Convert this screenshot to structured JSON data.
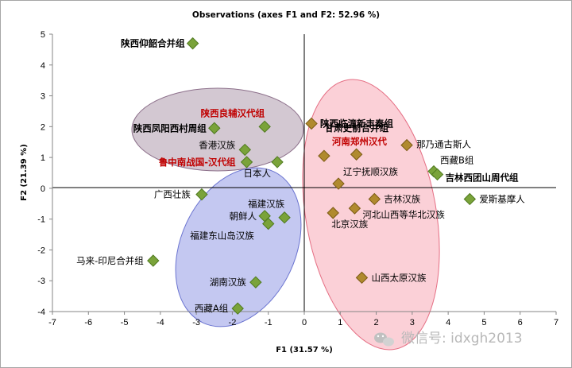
{
  "chart_data": {
    "type": "scatter",
    "title": "Observations (axes F1 and F2: 52.96 %)",
    "xlabel": "F1 (31.57 %)",
    "ylabel": "F2 (21.39 %)",
    "xlim": [
      -7,
      7
    ],
    "ylim": [
      -4,
      5
    ],
    "xticks": [
      "-7",
      "-6",
      "-5",
      "-4",
      "-3",
      "-2",
      "-1",
      "0",
      "1",
      "2",
      "3",
      "4",
      "5",
      "6",
      "7"
    ],
    "yticks": [
      "-4",
      "-3",
      "-2",
      "-1",
      "0",
      "1",
      "2",
      "3",
      "4",
      "5"
    ],
    "grid": false,
    "legend": "none",
    "marker": "diamond",
    "colors": {
      "green_marker": "#7aa33a",
      "brown_marker": "#b08a2e",
      "red_label": "#c00000",
      "purple_ellipse": "#8c6f8a",
      "pink_ellipse": "#f48a9c",
      "blue_ellipse": "#7c86e0"
    },
    "points": [
      {
        "label": "陕西仰韶合并组",
        "x": -3.1,
        "y": 4.7,
        "group": "green",
        "style": "bold"
      },
      {
        "label": "陕西良辅汉代组",
        "x": -1.1,
        "y": 2.0,
        "group": "green",
        "style": "red"
      },
      {
        "label": "陕西凤阳西村周组",
        "x": -2.5,
        "y": 1.95,
        "group": "green",
        "style": "bold"
      },
      {
        "label": "香港汉族",
        "x": -1.65,
        "y": 1.25,
        "group": "green",
        "style": "normal"
      },
      {
        "label": "鲁中南战国-汉代组",
        "x": -1.6,
        "y": 0.85,
        "group": "green",
        "style": "red"
      },
      {
        "label": "日本人",
        "x": -0.75,
        "y": 0.85,
        "group": "green",
        "style": "normal"
      },
      {
        "label": "广西壮族",
        "x": -2.85,
        "y": -0.2,
        "group": "green",
        "style": "normal"
      },
      {
        "label": "福建汉族",
        "x": -0.55,
        "y": -0.95,
        "group": "green",
        "style": "normal"
      },
      {
        "label": "朝鲜人",
        "x": -1.1,
        "y": -0.9,
        "group": "green",
        "style": "normal"
      },
      {
        "label": "福建东山岛汉族",
        "x": -1.0,
        "y": -1.15,
        "group": "green",
        "style": "normal"
      },
      {
        "label": "马来-印尼合并组",
        "x": -4.2,
        "y": -2.35,
        "group": "green",
        "style": "normal"
      },
      {
        "label": "湖南汉族",
        "x": -1.35,
        "y": -3.05,
        "group": "green",
        "style": "normal"
      },
      {
        "label": "西藏A组",
        "x": -1.85,
        "y": -3.9,
        "group": "green",
        "style": "normal"
      },
      {
        "label": "陕西临潼新丰秦组",
        "x": 0.2,
        "y": 2.1,
        "group": "brown",
        "style": "bold"
      },
      {
        "label": "甘肃史前合并组",
        "x": 1.45,
        "y": 1.1,
        "group": "brown",
        "style": "bold"
      },
      {
        "label": "河南郑州汉代",
        "x": 0.55,
        "y": 1.05,
        "group": "brown",
        "style": "red"
      },
      {
        "label": "那乃通古斯人",
        "x": 2.85,
        "y": 1.4,
        "group": "brown",
        "style": "normal"
      },
      {
        "label": "西藏B组",
        "x": 3.6,
        "y": 0.55,
        "group": "green",
        "style": "normal"
      },
      {
        "label": "吉林西团山周代组",
        "x": 3.7,
        "y": 0.45,
        "group": "green",
        "style": "bold"
      },
      {
        "label": "辽宁抚顺汉族",
        "x": 0.95,
        "y": 0.15,
        "group": "brown",
        "style": "normal"
      },
      {
        "label": "吉林汉族",
        "x": 1.95,
        "y": -0.35,
        "group": "brown",
        "style": "normal"
      },
      {
        "label": "爱斯基摩人",
        "x": 4.6,
        "y": -0.35,
        "group": "green",
        "style": "normal"
      },
      {
        "label": "河北山西等华北汉族",
        "x": 1.4,
        "y": -0.65,
        "group": "brown",
        "style": "normal"
      },
      {
        "label": "北京汉族",
        "x": 0.8,
        "y": -0.8,
        "group": "brown",
        "style": "normal"
      },
      {
        "label": "山西太原汉族",
        "x": 1.6,
        "y": -2.9,
        "group": "brown",
        "style": "normal"
      }
    ]
  },
  "watermark": {
    "text": "微信号: idxgh2013",
    "icon": "wechat-icon"
  }
}
